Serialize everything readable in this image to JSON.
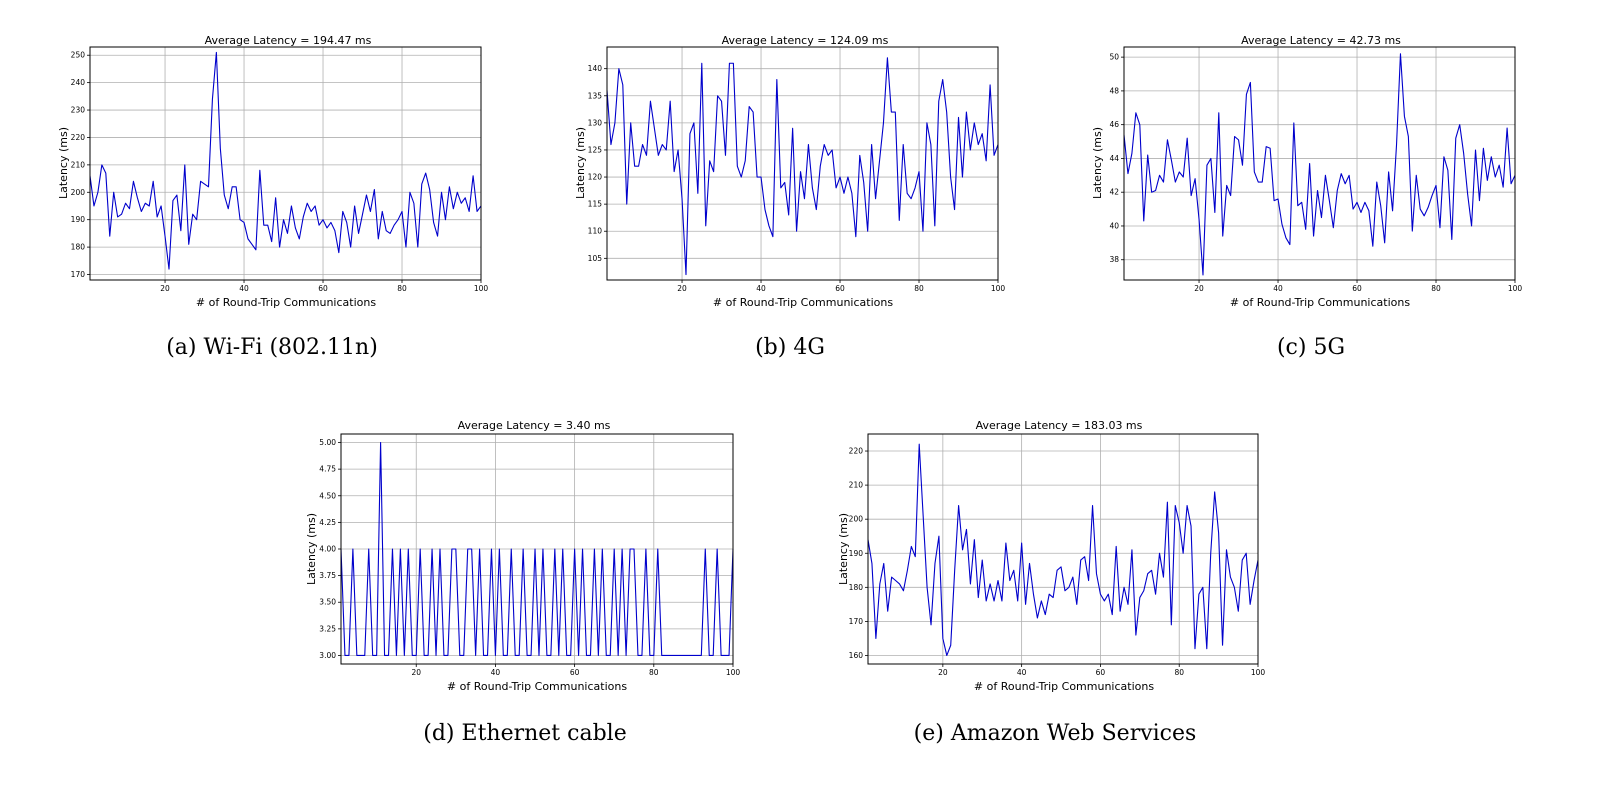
{
  "chart_data": [
    {
      "type": "line",
      "title": "Average Latency =  194.47 ms",
      "xlabel": "# of Round-Trip Communications",
      "ylabel": "Latency (ms)",
      "caption": "(a)  Wi-Fi (802.11n)",
      "xlim": [
        1,
        100
      ],
      "ylim": [
        168,
        253
      ],
      "grid": true,
      "xticks": [
        20,
        40,
        60,
        80,
        100
      ],
      "yticks": [
        170,
        180,
        190,
        200,
        210,
        220,
        230,
        240,
        250
      ],
      "series": [
        {
          "color": "#0000cc",
          "values": [
            206,
            195,
            200,
            210,
            207,
            184,
            200,
            191,
            192,
            196,
            194,
            204,
            198,
            193,
            196,
            195,
            204,
            191,
            195,
            184,
            172,
            197,
            199,
            186,
            210,
            181,
            192,
            190,
            204,
            203,
            202,
            234,
            251,
            216,
            199,
            194,
            202,
            202,
            190,
            189,
            183,
            181,
            179,
            208,
            188,
            188,
            182,
            198,
            180,
            190,
            185,
            195,
            187,
            183,
            191,
            196,
            193,
            195,
            188,
            190,
            187,
            189,
            186,
            178,
            193,
            189,
            180,
            195,
            185,
            192,
            199,
            193,
            201,
            183,
            193,
            186,
            185,
            188,
            190,
            193,
            180,
            200,
            196,
            180,
            203,
            207,
            201,
            189,
            184,
            200,
            190,
            202,
            194,
            200,
            196,
            198,
            193,
            206,
            193,
            195
          ]
        }
      ]
    },
    {
      "type": "line",
      "title": "Average Latency =  124.09 ms",
      "xlabel": "# of Round-Trip Communications",
      "ylabel": "Latency (ms)",
      "caption": "(b)  4G",
      "xlim": [
        1,
        100
      ],
      "ylim": [
        101,
        144
      ],
      "grid": true,
      "xticks": [
        20,
        40,
        60,
        80,
        100
      ],
      "yticks": [
        105,
        110,
        115,
        120,
        125,
        130,
        135,
        140
      ],
      "series": [
        {
          "color": "#0000cc",
          "values": [
            136,
            126,
            130,
            140,
            137,
            115,
            130,
            122,
            122,
            126,
            124,
            134,
            129,
            124,
            126,
            125,
            134,
            121,
            125,
            116,
            102,
            128,
            130,
            117,
            141,
            111,
            123,
            121,
            135,
            134,
            124,
            141,
            141,
            122,
            120,
            123,
            133,
            132,
            120,
            120,
            114,
            111,
            109,
            138,
            118,
            119,
            113,
            129,
            110,
            121,
            116,
            126,
            118,
            114,
            122,
            126,
            124,
            125,
            118,
            120,
            117,
            120,
            117,
            109,
            124,
            119,
            110,
            126,
            116,
            123,
            130,
            142,
            132,
            132,
            112,
            126,
            117,
            116,
            118,
            121,
            110,
            130,
            126,
            111,
            134,
            138,
            132,
            120,
            114,
            131,
            120,
            132,
            125,
            130,
            126,
            128,
            123,
            137,
            124,
            126
          ]
        }
      ]
    },
    {
      "type": "line",
      "title": "Average Latency =  42.73 ms",
      "xlabel": "# of Round-Trip Communications",
      "ylabel": "Latency (ms)",
      "caption": "(c)  5G",
      "xlim": [
        1,
        100
      ],
      "ylim": [
        36.8,
        50.6
      ],
      "grid": true,
      "xticks": [
        20,
        40,
        60,
        80,
        100
      ],
      "yticks": [
        38,
        40,
        42,
        44,
        46,
        48,
        50
      ],
      "series": [
        {
          "color": "#0000cc",
          "values": [
            45.4,
            43.1,
            44.3,
            46.7,
            46.0,
            40.3,
            44.2,
            42.0,
            42.1,
            43.0,
            42.6,
            45.1,
            43.9,
            42.6,
            43.2,
            42.9,
            45.2,
            41.8,
            42.8,
            40.4,
            37.1,
            43.6,
            44.0,
            40.8,
            46.7,
            39.4,
            42.4,
            41.8,
            45.3,
            45.1,
            43.6,
            47.8,
            48.5,
            43.2,
            42.6,
            42.6,
            44.7,
            44.6,
            41.5,
            41.6,
            40.1,
            39.3,
            38.9,
            46.1,
            41.2,
            41.4,
            39.8,
            43.7,
            39.4,
            42.1,
            40.5,
            43.0,
            41.5,
            39.9,
            42.1,
            43.1,
            42.5,
            43.0,
            41.0,
            41.4,
            40.8,
            41.4,
            40.9,
            38.8,
            42.6,
            41.2,
            39.0,
            43.2,
            40.9,
            44.8,
            50.2,
            46.5,
            45.3,
            39.7,
            43.0,
            41.0,
            40.6,
            41.1,
            41.8,
            42.4,
            39.9,
            44.1,
            43.3,
            39.2,
            45.2,
            46.0,
            44.3,
            41.9,
            40.0,
            44.5,
            41.5,
            44.6,
            42.7,
            44.1,
            42.9,
            43.6,
            42.3,
            45.8,
            42.5,
            43.0
          ]
        }
      ]
    },
    {
      "type": "line",
      "title": "Average Latency =  3.40 ms",
      "xlabel": "# of Round-Trip Communications",
      "ylabel": "Latency (ms)",
      "caption": "(d)  Ethernet cable",
      "xlim": [
        1,
        100
      ],
      "ylim": [
        2.92,
        5.08
      ],
      "grid": true,
      "xticks": [
        20,
        40,
        60,
        80,
        100
      ],
      "yticks": [
        3.0,
        3.25,
        3.5,
        3.75,
        4.0,
        4.25,
        4.5,
        4.75,
        5.0
      ],
      "ytick_labels": [
        "3.00",
        "3.25",
        "3.50",
        "3.75",
        "4.00",
        "4.25",
        "4.50",
        "4.75",
        "5.00"
      ],
      "series": [
        {
          "color": "#0000cc",
          "values": [
            4,
            3,
            3,
            4,
            3,
            3,
            3,
            4,
            3,
            3,
            5,
            3,
            3,
            4,
            3,
            4,
            3,
            4,
            3,
            3,
            4,
            3,
            3,
            4,
            3,
            4,
            3,
            3,
            4,
            4,
            3,
            3,
            4,
            4,
            3,
            4,
            3,
            3,
            4,
            3,
            4,
            3,
            3,
            4,
            3,
            3,
            4,
            3,
            3,
            4,
            3,
            4,
            3,
            3,
            4,
            3,
            4,
            3,
            3,
            4,
            3,
            4,
            3,
            3,
            4,
            3,
            4,
            3,
            3,
            4,
            3,
            4,
            3,
            4,
            4,
            3,
            3,
            4,
            3,
            3,
            4,
            3,
            3,
            3,
            3,
            3,
            3,
            3,
            3,
            3,
            3,
            3,
            4,
            3,
            3,
            4,
            3,
            3,
            3,
            4
          ]
        }
      ]
    },
    {
      "type": "line",
      "title": "Average Latency =  183.03 ms",
      "xlabel": "# of Round-Trip Communications",
      "ylabel": "Latency (ms)",
      "caption": "(e)  Amazon Web Services",
      "xlim": [
        1,
        100
      ],
      "ylim": [
        157.5,
        225
      ],
      "grid": true,
      "xticks": [
        20,
        40,
        60,
        80,
        100
      ],
      "yticks": [
        160,
        170,
        180,
        190,
        200,
        210,
        220
      ],
      "series": [
        {
          "color": "#0000cc",
          "values": [
            194,
            187,
            165,
            181,
            187,
            173,
            183,
            182,
            181,
            179,
            185,
            192,
            189,
            222,
            201,
            180,
            169,
            187,
            195,
            165,
            160,
            163,
            185,
            204,
            191,
            197,
            181,
            194,
            177,
            188,
            176,
            181,
            176,
            182,
            176,
            193,
            182,
            185,
            176,
            193,
            175,
            187,
            178,
            171,
            176,
            172,
            178,
            177,
            185,
            186,
            179,
            180,
            183,
            175,
            188,
            189,
            182,
            204,
            184,
            178,
            176,
            178,
            172,
            192,
            173,
            180,
            175,
            191,
            166,
            177,
            179,
            184,
            185,
            178,
            190,
            183,
            205,
            169,
            204,
            199,
            190,
            204,
            198,
            162,
            178,
            180,
            162,
            190,
            208,
            196,
            163,
            191,
            183,
            180,
            173,
            188,
            190,
            175,
            182,
            188
          ]
        }
      ]
    }
  ]
}
